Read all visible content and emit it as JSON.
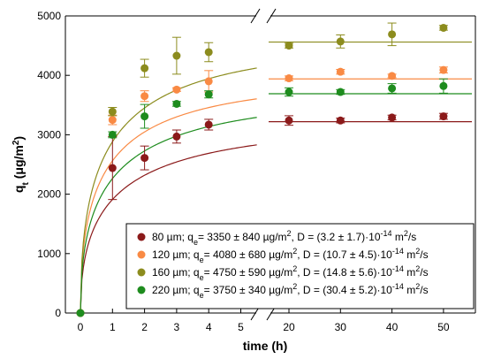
{
  "chart_data": {
    "type": "scatter",
    "xlabel": "time (h)",
    "ylabel": "qt (μg/m2)",
    "ylabel_parts": {
      "main": "q",
      "sub": "t",
      "open": " (μg/m",
      "sup": "2",
      "close": ")"
    },
    "ylim": [
      0,
      5000
    ],
    "y_ticks": [
      "0",
      "1000",
      "2000",
      "3000",
      "4000",
      "5000"
    ],
    "x_left_ticks": [
      "0",
      "1",
      "2",
      "3",
      "4",
      "5"
    ],
    "x_right_ticks": [
      "20",
      "30",
      "40",
      "50"
    ],
    "x_break": [
      5.5,
      17
    ],
    "series": [
      {
        "name": "80 µm",
        "color": "#8b1a1a",
        "fit_qe": 3220,
        "fit_k": 0.9,
        "points": [
          {
            "x": 0,
            "y": 0,
            "err": 0
          },
          {
            "x": 1,
            "y": 2440,
            "err": 530
          },
          {
            "x": 2,
            "y": 2610,
            "err": 200
          },
          {
            "x": 3,
            "y": 2970,
            "err": 110
          },
          {
            "x": 4,
            "y": 3170,
            "err": 90
          },
          {
            "x": 20,
            "y": 3240,
            "err": 80
          },
          {
            "x": 30,
            "y": 3240,
            "err": 40
          },
          {
            "x": 40,
            "y": 3290,
            "err": 40
          },
          {
            "x": 50,
            "y": 3310,
            "err": 50
          }
        ],
        "legend": {
          "lead": "80 µm;   q",
          "sub": "e",
          "mid": "= 3350 ± 840 µg/m",
          "sup1": "2",
          "d": ", D = (3.2 ± 1.7)·10",
          "exp": "-14",
          "unit": " m",
          "sup2": "2",
          "tail": "/s"
        }
      },
      {
        "name": "120 µm",
        "color": "#f98a44",
        "fit_qe": 3940,
        "fit_k": 1.05,
        "points": [
          {
            "x": 0,
            "y": 0,
            "err": 0
          },
          {
            "x": 1,
            "y": 3250,
            "err": 80
          },
          {
            "x": 2,
            "y": 3650,
            "err": 90
          },
          {
            "x": 3,
            "y": 3760,
            "err": 30
          },
          {
            "x": 4,
            "y": 3900,
            "err": 180
          },
          {
            "x": 20,
            "y": 3950,
            "err": 40
          },
          {
            "x": 30,
            "y": 4060,
            "err": 40
          },
          {
            "x": 40,
            "y": 3990,
            "err": 30
          },
          {
            "x": 50,
            "y": 4090,
            "err": 50
          }
        ],
        "legend": {
          "lead": "120 µm; q",
          "sub": "e",
          "mid": "= 4080 ± 680 µg/m",
          "sup1": "2",
          "d": ", D = (10.7 ± 4.5)·10",
          "exp": "-14",
          "unit": " m",
          "sup2": "2",
          "tail": "/s"
        }
      },
      {
        "name": "160 µm",
        "color": "#8c8c1e",
        "fit_qe": 4560,
        "fit_k": 1.0,
        "points": [
          {
            "x": 0,
            "y": 0,
            "err": 0
          },
          {
            "x": 1,
            "y": 3390,
            "err": 70
          },
          {
            "x": 2,
            "y": 4120,
            "err": 150
          },
          {
            "x": 3,
            "y": 4330,
            "err": 310
          },
          {
            "x": 4,
            "y": 4390,
            "err": 160
          },
          {
            "x": 20,
            "y": 4500,
            "err": 40
          },
          {
            "x": 30,
            "y": 4570,
            "err": 110
          },
          {
            "x": 40,
            "y": 4690,
            "err": 190
          },
          {
            "x": 50,
            "y": 4800,
            "err": 40
          }
        ],
        "legend": {
          "lead": "160 µm; q",
          "sub": "e",
          "mid": "= 4750 ± 590 µg/m",
          "sup1": "2",
          "d": ", D = (14.8 ± 5.6)·10",
          "exp": "-14",
          "unit": " m",
          "sup2": "2",
          "tail": "/s"
        }
      },
      {
        "name": "220 µm",
        "color": "#1e8c1e",
        "fit_qe": 3690,
        "fit_k": 0.95,
        "points": [
          {
            "x": 0,
            "y": 0,
            "err": 0
          },
          {
            "x": 1,
            "y": 3000,
            "err": 50
          },
          {
            "x": 2,
            "y": 3310,
            "err": 200
          },
          {
            "x": 3,
            "y": 3520,
            "err": 40
          },
          {
            "x": 4,
            "y": 3680,
            "err": 60
          },
          {
            "x": 20,
            "y": 3720,
            "err": 70
          },
          {
            "x": 30,
            "y": 3720,
            "err": 40
          },
          {
            "x": 40,
            "y": 3780,
            "err": 80
          },
          {
            "x": 50,
            "y": 3820,
            "err": 120
          }
        ],
        "legend": {
          "lead": "220 µm; q",
          "sub": "e",
          "mid": "= 3750 ± 340 µg/m",
          "sup1": "2",
          "d": ", D = (30.4 ± 5.2)·10",
          "exp": "-14",
          "unit": " m",
          "sup2": "2",
          "tail": "/s"
        }
      }
    ],
    "legend_placement": "bottom-right",
    "grid": false
  }
}
